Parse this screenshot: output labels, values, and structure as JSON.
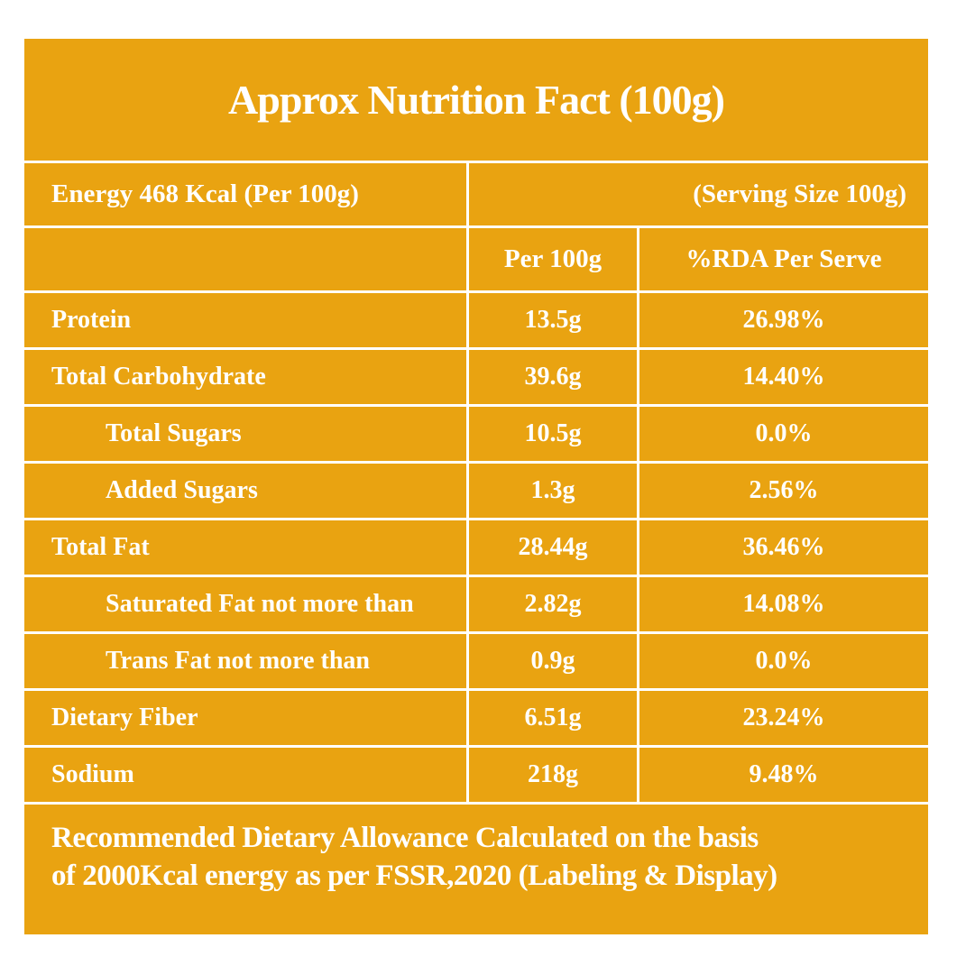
{
  "title": "Approx Nutrition Fact (100g)",
  "energy_row": {
    "label": "Energy 468 Kcal (Per 100g)",
    "serving": "(Serving Size 100g)"
  },
  "column_headers": {
    "per_100g": "Per 100g",
    "rda_per_serve": "%RDA Per Serve"
  },
  "rows": [
    {
      "label": "Protein",
      "per_100g": "13.5g",
      "rda": "26.98%"
    },
    {
      "label": "Total Carbohydrate",
      "per_100g": "39.6g",
      "rda": "14.40%"
    },
    {
      "label": "Total Sugars",
      "per_100g": "10.5g",
      "rda": "0.0%"
    },
    {
      "label": "Added Sugars",
      "per_100g": "1.3g",
      "rda": "2.56%"
    },
    {
      "label": "Total Fat",
      "per_100g": "28.44g",
      "rda": "36.46%"
    },
    {
      "label": "Saturated Fat not more than",
      "per_100g": "2.82g",
      "rda": "14.08%"
    },
    {
      "label": "Trans Fat not more than",
      "per_100g": "0.9g",
      "rda": "0.0%"
    },
    {
      "label": "Dietary Fiber",
      "per_100g": "6.51g",
      "rda": "23.24%"
    },
    {
      "label": "Sodium",
      "per_100g": "218g",
      "rda": "9.48%"
    }
  ],
  "footer": {
    "line1": "Recommended Dietary Allowance Calculated on the basis",
    "line2": "of 2000Kcal energy as per FSSR,2020 (Labeling & Display)"
  },
  "colors": {
    "table_background": "#E9A311",
    "text": "#FFFFFF",
    "grid_gap": "#FFFFFF"
  }
}
